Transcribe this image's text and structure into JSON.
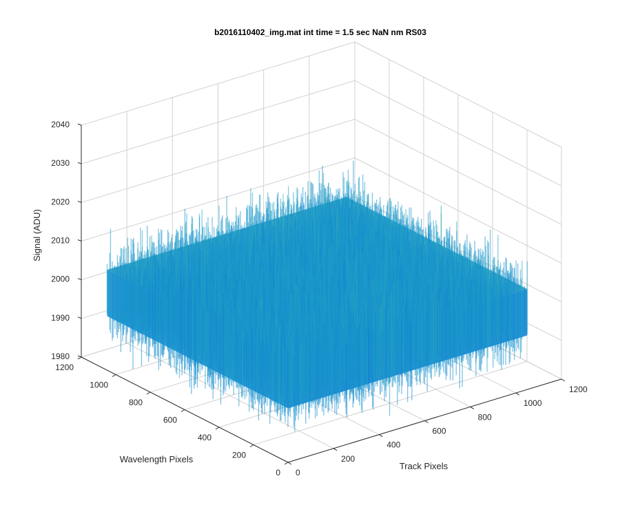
{
  "chart_data": {
    "type": "surface",
    "title": "b2016110402_img.mat int time = 1.5 sec  NaN nm RS03",
    "xlabel": "Track Pixels",
    "ylabel": "Wavelength Pixels",
    "zlabel": "Signal (ADU)",
    "xlim": [
      0,
      1200
    ],
    "ylim": [
      0,
      1200
    ],
    "zlim": [
      1980,
      2040
    ],
    "xticks": [
      "0",
      "200",
      "400",
      "600",
      "800",
      "1000",
      "1200"
    ],
    "yticks": [
      "0",
      "200",
      "400",
      "600",
      "800",
      "1000",
      "1200"
    ],
    "zticks": [
      "1980",
      "1990",
      "2000",
      "2010",
      "2020",
      "2030",
      "2040"
    ],
    "grid": true,
    "surface": {
      "x_extent": [
        0,
        1050
      ],
      "y_extent": [
        0,
        1050
      ],
      "z_mean": 2000,
      "z_spread": [
        1985,
        2025
      ],
      "colormap": "parula"
    },
    "colors": {
      "low": "#0a6fd6",
      "mid": "#1da0c8",
      "high": "#8fc86a",
      "grid": "#d0d0d0",
      "axis": "#262626"
    }
  }
}
